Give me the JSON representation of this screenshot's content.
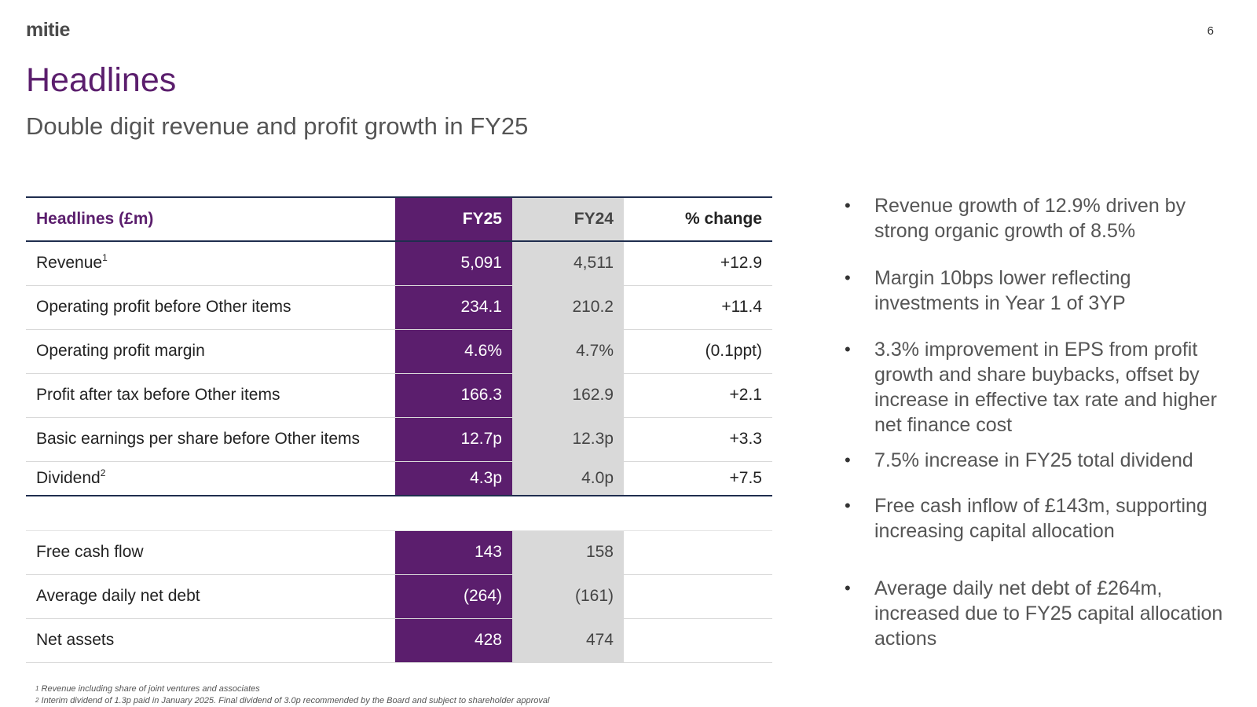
{
  "logo": "mitie",
  "page_number": "6",
  "title": "Headlines",
  "subtitle": "Double digit revenue and profit growth in FY25",
  "table": {
    "headers": [
      "Headlines (£m)",
      "FY25",
      "FY24",
      "% change"
    ],
    "rows": [
      {
        "label": "Revenue",
        "sup": "1",
        "fy25": "5,091",
        "fy24": "4,511",
        "change": "+12.9"
      },
      {
        "label": "Operating profit before Other items",
        "sup": "",
        "fy25": "234.1",
        "fy24": "210.2",
        "change": "+11.4"
      },
      {
        "label": "Operating profit margin",
        "sup": "",
        "fy25": "4.6%",
        "fy24": "4.7%",
        "change": "(0.1ppt)"
      },
      {
        "label": "Profit after tax before Other items",
        "sup": "",
        "fy25": "166.3",
        "fy24": "162.9",
        "change": "+2.1"
      },
      {
        "label": "Basic earnings per share before Other items",
        "sup": "",
        "fy25": "12.7p",
        "fy24": "12.3p",
        "change": "+3.3"
      },
      {
        "label": "Dividend",
        "sup": "2",
        "fy25": "4.3p",
        "fy24": "4.0p",
        "change": "+7.5"
      }
    ],
    "rows2": [
      {
        "label": "Free cash flow",
        "fy25": "143",
        "fy24": "158",
        "change": ""
      },
      {
        "label": "Average daily net debt",
        "fy25": "(264)",
        "fy24": "(161)",
        "change": ""
      },
      {
        "label": "Net assets",
        "fy25": "428",
        "fy24": "474",
        "change": ""
      }
    ]
  },
  "bullets": [
    "Revenue growth of 12.9% driven by strong organic growth of 8.5%",
    "Margin 10bps lower reflecting investments in Year 1 of 3YP",
    "3.3% improvement in EPS from profit growth and share buybacks, offset by increase in effective tax rate and higher net finance cost",
    "7.5% increase in FY25 total dividend",
    "Free cash inflow of £143m, supporting increasing capital allocation",
    "Average daily net debt of £264m, increased due to FY25 capital allocation actions"
  ],
  "bullet_symbol": "•",
  "footnotes": [
    {
      "sup": "1",
      "text": "Revenue including share of joint ventures and associates"
    },
    {
      "sup": "2",
      "text": "Interim dividend of 1.3p paid in January 2025. Final dividend of 3.0p recommended by the Board and subject to shareholder approval"
    }
  ]
}
